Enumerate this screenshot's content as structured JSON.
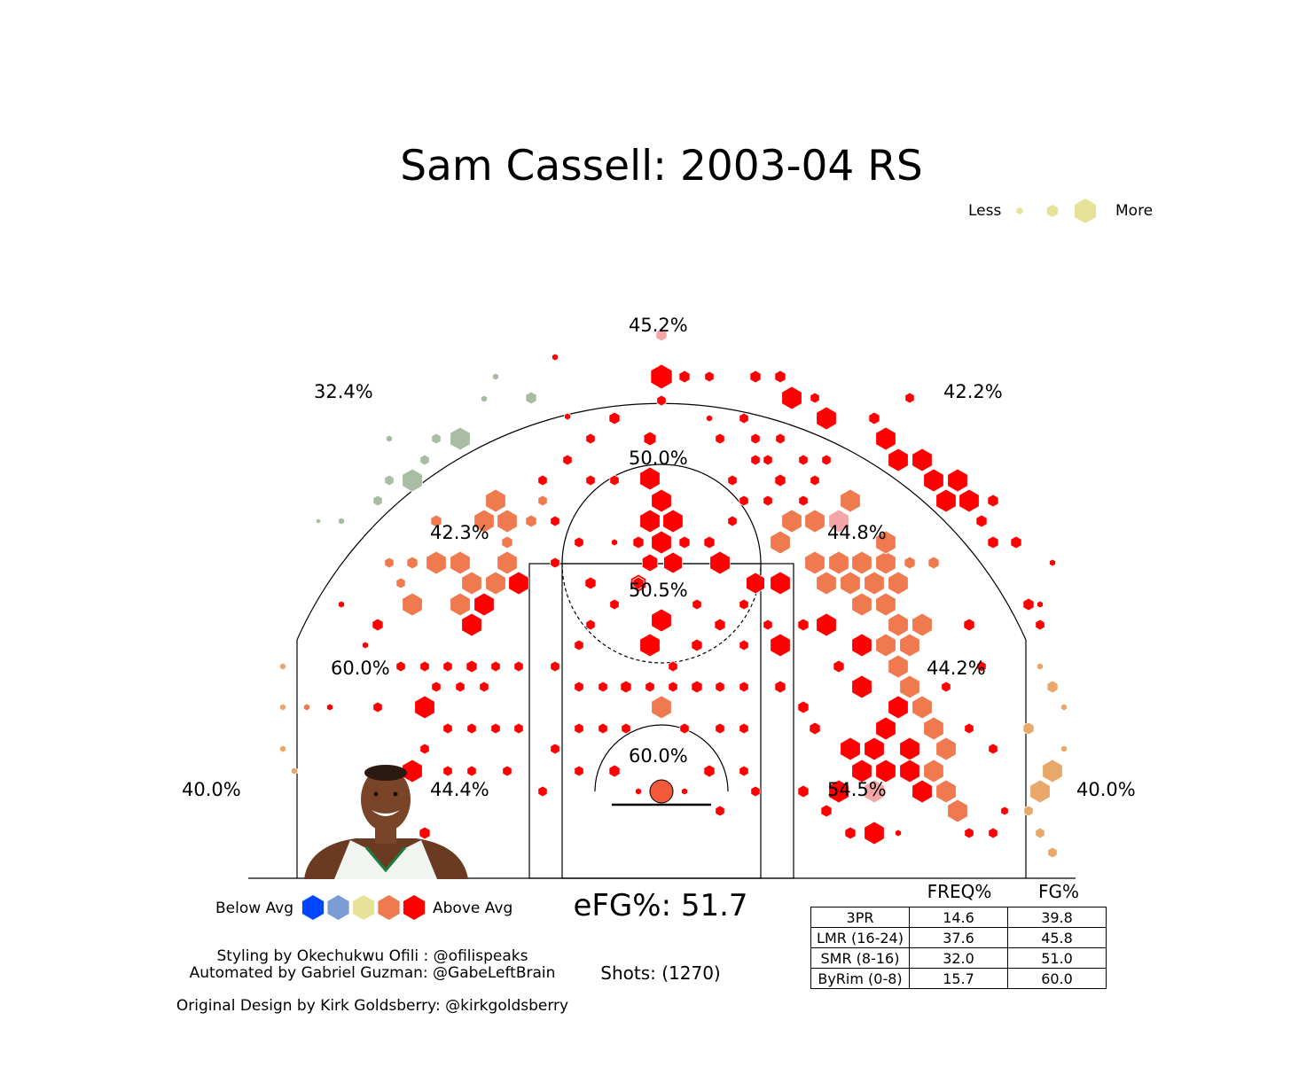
{
  "chart_data": {
    "type": "hexbin",
    "title": "Sam Cassell: 2003-04 RS",
    "size_legend": {
      "less_label": "Less",
      "more_label": "More",
      "color": "#e6e29a"
    },
    "color_legend": {
      "below_label": "Below Avg",
      "above_label": "Above Avg",
      "colors": [
        "#0047ff",
        "#7a9bd4",
        "#e6e29a",
        "#f07a50",
        "#ff0000"
      ]
    },
    "zone_labels": [
      {
        "zone": "corner-3-left",
        "fg": "40.0%"
      },
      {
        "zone": "wing-3-left",
        "fg": "32.4%"
      },
      {
        "zone": "top-3",
        "fg": "45.2%"
      },
      {
        "zone": "wing-3-right",
        "fg": "42.2%"
      },
      {
        "zone": "corner-3-right",
        "fg": "40.0%"
      },
      {
        "zone": "top-long-2",
        "fg": "50.0%"
      },
      {
        "zone": "left-elbow",
        "fg": "42.3%"
      },
      {
        "zone": "right-elbow",
        "fg": "44.8%"
      },
      {
        "zone": "free-throw",
        "fg": "50.5%"
      },
      {
        "zone": "left-wing-2",
        "fg": "60.0%"
      },
      {
        "zone": "right-wing-2",
        "fg": "44.2%"
      },
      {
        "zone": "left-baseline-2",
        "fg": "44.4%"
      },
      {
        "zone": "right-baseline-2",
        "fg": "54.5%"
      },
      {
        "zone": "restricted-area",
        "fg": "60.0%"
      }
    ],
    "efg_text": "eFG%: 51.7",
    "shots_text": "Shots: (1270)",
    "table": {
      "columns": [
        "",
        "FREQ%",
        "FG%"
      ],
      "rows": [
        {
          "label": "3PR",
          "freq": "14.6",
          "fg": "39.8"
        },
        {
          "label": "LMR (16-24)",
          "freq": "37.6",
          "fg": "45.8"
        },
        {
          "label": "SMR (8-16)",
          "freq": "32.0",
          "fg": "51.0"
        },
        {
          "label": "ByRim (0-8)",
          "freq": "15.7",
          "fg": "60.0"
        }
      ]
    },
    "credits": [
      "Styling by Okechukwu Ofili : @ofilispeaks",
      "Automated by Gabriel Guzman: @GabeLeftBrain",
      "Original Design by Kirk Goldsberry: @kirkgoldsberry"
    ]
  }
}
